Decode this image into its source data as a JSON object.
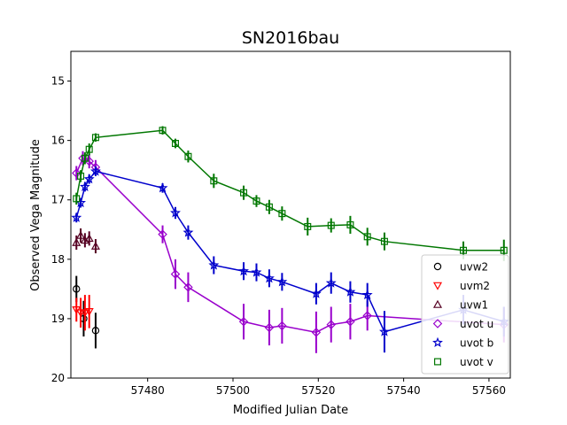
{
  "chart_data": {
    "type": "scatter",
    "title": "SN2016bau",
    "xlabel": "Modified Julian Date",
    "ylabel": "Observed Vega Magnitude",
    "xlim": [
      57462,
      57565
    ],
    "ylim": [
      20,
      14.5
    ],
    "y_inverted": true,
    "grid": false,
    "legend_position": "lower-right",
    "x_ticks": [
      57480,
      57500,
      57520,
      57540,
      57560
    ],
    "x_tick_labels": [
      "57480",
      "57500",
      "57520",
      "57540",
      "57560"
    ],
    "y_ticks": [
      15,
      16,
      17,
      18,
      19,
      20
    ],
    "y_tick_labels": [
      "15",
      "16",
      "17",
      "18",
      "19",
      "20"
    ],
    "series": [
      {
        "name": "uvw2",
        "marker": "circle",
        "color": "#000000",
        "connected": false,
        "x": [
          57463.3,
          57465.0,
          57467.8
        ],
        "y": [
          18.5,
          19.0,
          19.2
        ],
        "err": [
          0.22,
          0.3,
          0.3
        ]
      },
      {
        "name": "uvm2",
        "marker": "triangle-down",
        "color": "#ff0000",
        "connected": false,
        "x": [
          57463.3,
          57464.3,
          57465.3,
          57466.3
        ],
        "y": [
          18.85,
          18.9,
          18.9,
          18.88
        ],
        "err": [
          0.2,
          0.25,
          0.3,
          0.28
        ]
      },
      {
        "name": "uvw1",
        "marker": "triangle-up",
        "color": "#550022",
        "connected": false,
        "x": [
          57463.3,
          57464.3,
          57465.3,
          57466.3,
          57467.8
        ],
        "y": [
          17.72,
          17.6,
          17.68,
          17.65,
          17.78
        ],
        "err": [
          0.12,
          0.12,
          0.12,
          0.12,
          0.12
        ]
      },
      {
        "name": "uvot u",
        "marker": "diamond",
        "color": "#9900cc",
        "connected": true,
        "x": [
          57463.3,
          57464.8,
          57466.3,
          57467.8,
          57483.5,
          57486.5,
          57489.5,
          57502.5,
          57508.5,
          57511.5,
          57519.5,
          57523.0,
          57527.5,
          57531.5,
          57563.5
        ],
        "y": [
          16.55,
          16.3,
          16.35,
          16.45,
          17.58,
          18.25,
          18.47,
          19.05,
          19.15,
          19.12,
          19.23,
          19.1,
          19.05,
          18.95,
          19.1
        ],
        "err": [
          0.12,
          0.12,
          0.12,
          0.12,
          0.15,
          0.25,
          0.25,
          0.3,
          0.3,
          0.3,
          0.35,
          0.3,
          0.3,
          0.25,
          0.3
        ]
      },
      {
        "name": "uvot b",
        "marker": "star",
        "color": "#0000cc",
        "connected": true,
        "x": [
          57463.3,
          57464.3,
          57465.3,
          57466.3,
          57467.8,
          57483.5,
          57486.5,
          57489.5,
          57495.5,
          57502.5,
          57505.5,
          57508.5,
          57511.5,
          57519.5,
          57523.0,
          57527.5,
          57531.5,
          57535.5,
          57554.0,
          57563.5
        ],
        "y": [
          17.3,
          17.05,
          16.78,
          16.65,
          16.52,
          16.8,
          17.22,
          17.55,
          18.1,
          18.2,
          18.22,
          18.32,
          18.38,
          18.58,
          18.4,
          18.55,
          18.6,
          19.22,
          18.85,
          19.05
        ],
        "err": [
          0.08,
          0.08,
          0.08,
          0.08,
          0.08,
          0.08,
          0.1,
          0.12,
          0.15,
          0.15,
          0.15,
          0.15,
          0.15,
          0.18,
          0.18,
          0.18,
          0.2,
          0.35,
          0.25,
          0.25
        ]
      },
      {
        "name": "uvot v",
        "marker": "square",
        "color": "#007700",
        "connected": true,
        "x": [
          57463.3,
          57464.3,
          57465.3,
          57466.3,
          57467.8,
          57483.5,
          57486.5,
          57489.5,
          57495.5,
          57502.5,
          57505.5,
          57508.5,
          57511.5,
          57517.5,
          57523.0,
          57527.5,
          57531.5,
          57535.5,
          57554.0,
          57563.5
        ],
        "y": [
          16.98,
          16.6,
          16.3,
          16.15,
          15.95,
          15.83,
          16.05,
          16.27,
          16.68,
          16.88,
          17.02,
          17.12,
          17.23,
          17.45,
          17.43,
          17.42,
          17.62,
          17.7,
          17.85,
          17.85
        ],
        "err": [
          0.1,
          0.1,
          0.1,
          0.1,
          0.07,
          0.07,
          0.08,
          0.1,
          0.12,
          0.12,
          0.1,
          0.12,
          0.12,
          0.15,
          0.12,
          0.15,
          0.15,
          0.15,
          0.15,
          0.18
        ]
      }
    ]
  }
}
